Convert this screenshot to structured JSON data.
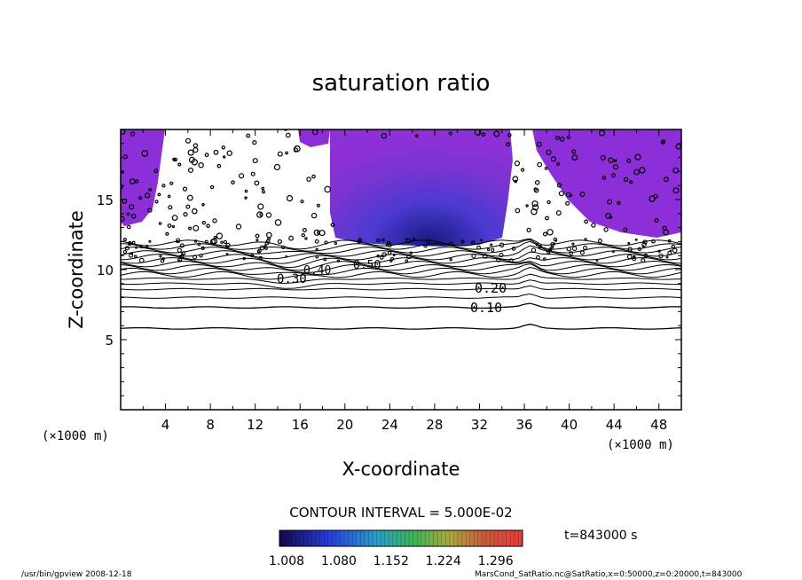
{
  "chart_data": {
    "type": "heatmap",
    "title": "saturation ratio",
    "xlabel": "X-coordinate",
    "ylabel": "Z-coordinate",
    "x_unit": "(×1000 m)",
    "y_unit": "(×1000 m)",
    "xlim": [
      0,
      50
    ],
    "ylim": [
      0,
      20
    ],
    "x_ticks": [
      "4",
      "8",
      "12",
      "16",
      "20",
      "24",
      "28",
      "32",
      "36",
      "40",
      "44",
      "48"
    ],
    "y_ticks": [
      "5",
      "10",
      "15"
    ],
    "contour_interval_text": "CONTOUR INTERVAL = 5.000E-02",
    "contour_labels": [
      "0.10",
      "0.20",
      "0.30",
      "0.40",
      "0.50"
    ],
    "colorbar_ticks": [
      "1.008",
      "1.080",
      "1.152",
      "1.224",
      "1.296"
    ],
    "colorbar_range": [
      1.008,
      1.296
    ],
    "colors": {
      "low": "#1a1070",
      "mid_blue": "#3a36c8",
      "purple": "#7a30c8",
      "violet": "#8c2fd8",
      "high": "#ff4d4d"
    }
  },
  "time_label": "t=843000 s",
  "footer": {
    "program": "/usr/bin/gpview  2008-12-18",
    "source": "MarsCond_SatRatio.nc@SatRatio,x=0:50000,z=0:20000,t=843000"
  }
}
